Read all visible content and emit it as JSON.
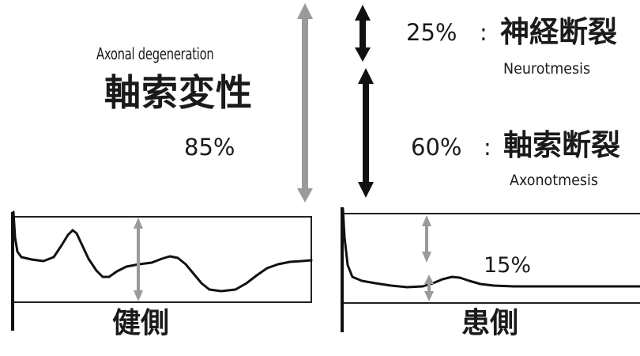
{
  "left_labels": {
    "english": "Axonal degeneration",
    "japanese": "軸索変性",
    "percent": "85%"
  },
  "right_labels": {
    "neurotmesis_percent": "25%",
    "neurotmesis_separator": ":",
    "neurotmesis_japanese": "神経断裂",
    "neurotmesis_english": "Neurotmesis",
    "axonotmesis_percent": "60%",
    "axonotmesis_separator": ":",
    "axonotmesis_japanese": "軸索断裂",
    "axonotmesis_english": "Axonotmesis"
  },
  "panels": {
    "healthy_label": "健側",
    "affected_label": "患側",
    "affected_value": "15%"
  },
  "colors": {
    "gray_arrow": "#9a9a9a",
    "black_arrow": "#111111",
    "trace": "#111111",
    "box": "#222222"
  }
}
